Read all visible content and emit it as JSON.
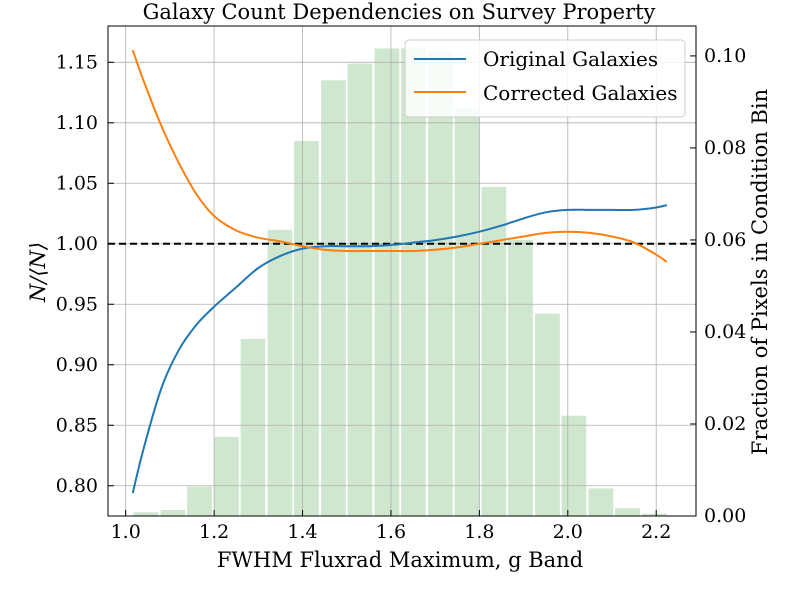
{
  "chart_data": {
    "type": "bar+line",
    "title": "Galaxy Count Dependencies on Survey Property",
    "xlabel": "FWHM Fluxrad Maximum, g Band",
    "ylabel": "N/⟨N⟩",
    "y2label": "Fraction of Pixels in Condition Bin",
    "xlim": [
      0.96,
      2.29
    ],
    "ylim": [
      0.775,
      1.18
    ],
    "y2lim": [
      0.0,
      0.1065
    ],
    "x_ticks": [
      "1.0",
      "1.2",
      "1.4",
      "1.6",
      "1.8",
      "2.0",
      "2.2"
    ],
    "x_tick_values": [
      1.0,
      1.2,
      1.4,
      1.6,
      1.8,
      2.0,
      2.2
    ],
    "y_ticks": [
      "0.80",
      "0.85",
      "0.90",
      "0.95",
      "1.00",
      "1.05",
      "1.10",
      "1.15"
    ],
    "y_tick_values": [
      0.8,
      0.85,
      0.9,
      0.95,
      1.0,
      1.05,
      1.1,
      1.15
    ],
    "y2_ticks": [
      "0.00",
      "0.02",
      "0.04",
      "0.06",
      "0.08",
      "0.10"
    ],
    "y2_tick_values": [
      0.0,
      0.02,
      0.04,
      0.06,
      0.08,
      0.1
    ],
    "grid": true,
    "legend_position": "top-right",
    "reference_line": {
      "y": 1.0,
      "style": "dashed",
      "color": "#000000"
    },
    "histogram": {
      "axis": "right",
      "color": "#cfe6cf",
      "bin_width": 0.0605,
      "bin_centers": [
        1.046,
        1.107,
        1.167,
        1.228,
        1.288,
        1.349,
        1.409,
        1.47,
        1.53,
        1.591,
        1.651,
        1.712,
        1.772,
        1.833,
        1.893,
        1.954,
        2.014,
        2.075,
        2.135,
        2.196
      ],
      "values": [
        0.0008,
        0.0013,
        0.0064,
        0.0172,
        0.0385,
        0.0622,
        0.0815,
        0.0947,
        0.0983,
        0.1016,
        0.1016,
        0.101,
        0.0887,
        0.0715,
        0.06,
        0.044,
        0.0218,
        0.006,
        0.0017,
        0.0005
      ]
    },
    "series": [
      {
        "name": "Original Galaxies",
        "color": "#1f77b4",
        "x": [
          1.016,
          1.04,
          1.08,
          1.12,
          1.16,
          1.2,
          1.25,
          1.3,
          1.35,
          1.4,
          1.45,
          1.5,
          1.55,
          1.6,
          1.65,
          1.7,
          1.75,
          1.8,
          1.85,
          1.9,
          1.95,
          2.0,
          2.05,
          2.1,
          2.15,
          2.2,
          2.224
        ],
        "y": [
          0.794,
          0.83,
          0.88,
          0.912,
          0.933,
          0.948,
          0.964,
          0.98,
          0.99,
          0.996,
          0.998,
          0.998,
          0.998,
          0.999,
          1.001,
          1.003,
          1.006,
          1.01,
          1.015,
          1.021,
          1.026,
          1.028,
          1.028,
          1.028,
          1.028,
          1.03,
          1.032
        ]
      },
      {
        "name": "Corrected Galaxies",
        "color": "#ff7f0e",
        "x": [
          1.016,
          1.04,
          1.08,
          1.12,
          1.16,
          1.2,
          1.25,
          1.3,
          1.35,
          1.4,
          1.45,
          1.5,
          1.55,
          1.6,
          1.65,
          1.7,
          1.75,
          1.8,
          1.85,
          1.9,
          1.95,
          2.0,
          2.05,
          2.1,
          2.15,
          2.2,
          2.224
        ],
        "y": [
          1.16,
          1.135,
          1.098,
          1.067,
          1.041,
          1.023,
          1.011,
          1.005,
          1.002,
          0.998,
          0.995,
          0.994,
          0.994,
          0.994,
          0.994,
          0.995,
          0.997,
          1.0,
          1.003,
          1.006,
          1.009,
          1.01,
          1.009,
          1.006,
          1.001,
          0.991,
          0.985
        ]
      }
    ]
  }
}
